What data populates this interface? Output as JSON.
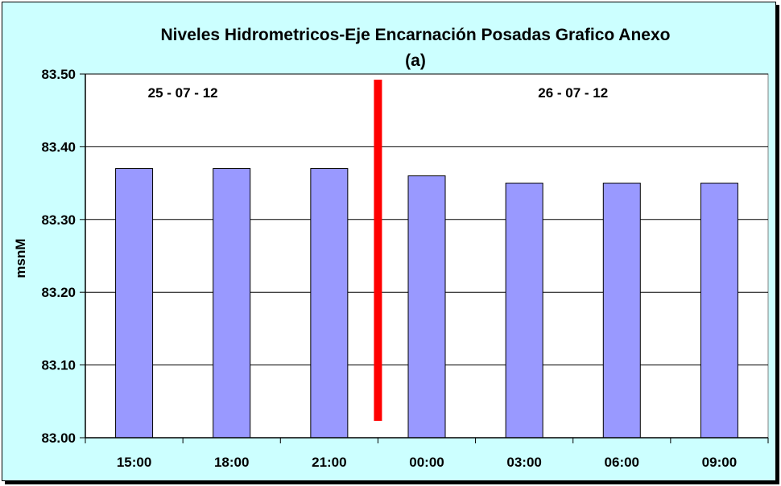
{
  "chart_data": {
    "type": "bar",
    "title": "Niveles Hidrometricos-Eje Encarnación Posadas Grafico Anexo",
    "subtitle": "(a)",
    "ylabel": "msnM",
    "xlabel": "",
    "categories": [
      "15:00",
      "18:00",
      "21:00",
      "00:00",
      "03:00",
      "06:00",
      "09:00"
    ],
    "values": [
      83.37,
      83.37,
      83.37,
      83.36,
      83.35,
      83.35,
      83.35
    ],
    "ylim": [
      83.0,
      83.5
    ],
    "yticks": [
      "83.00",
      "83.10",
      "83.20",
      "83.30",
      "83.40",
      "83.50"
    ],
    "grid": true,
    "legend": "none",
    "annotations": [
      {
        "text": "25 - 07 - 12",
        "over_categories": [
          0,
          1
        ]
      },
      {
        "text": "26 - 07 - 12",
        "over_categories": [
          4,
          5
        ]
      }
    ],
    "divider": {
      "between_categories": [
        2,
        3
      ]
    },
    "colors": {
      "bar_fill": "#9999ff",
      "bar_stroke": "#000000",
      "plot_background": "#ffffff",
      "chart_background": "#ccffff",
      "divider": "#ff0000",
      "gridline": "#000000"
    }
  }
}
